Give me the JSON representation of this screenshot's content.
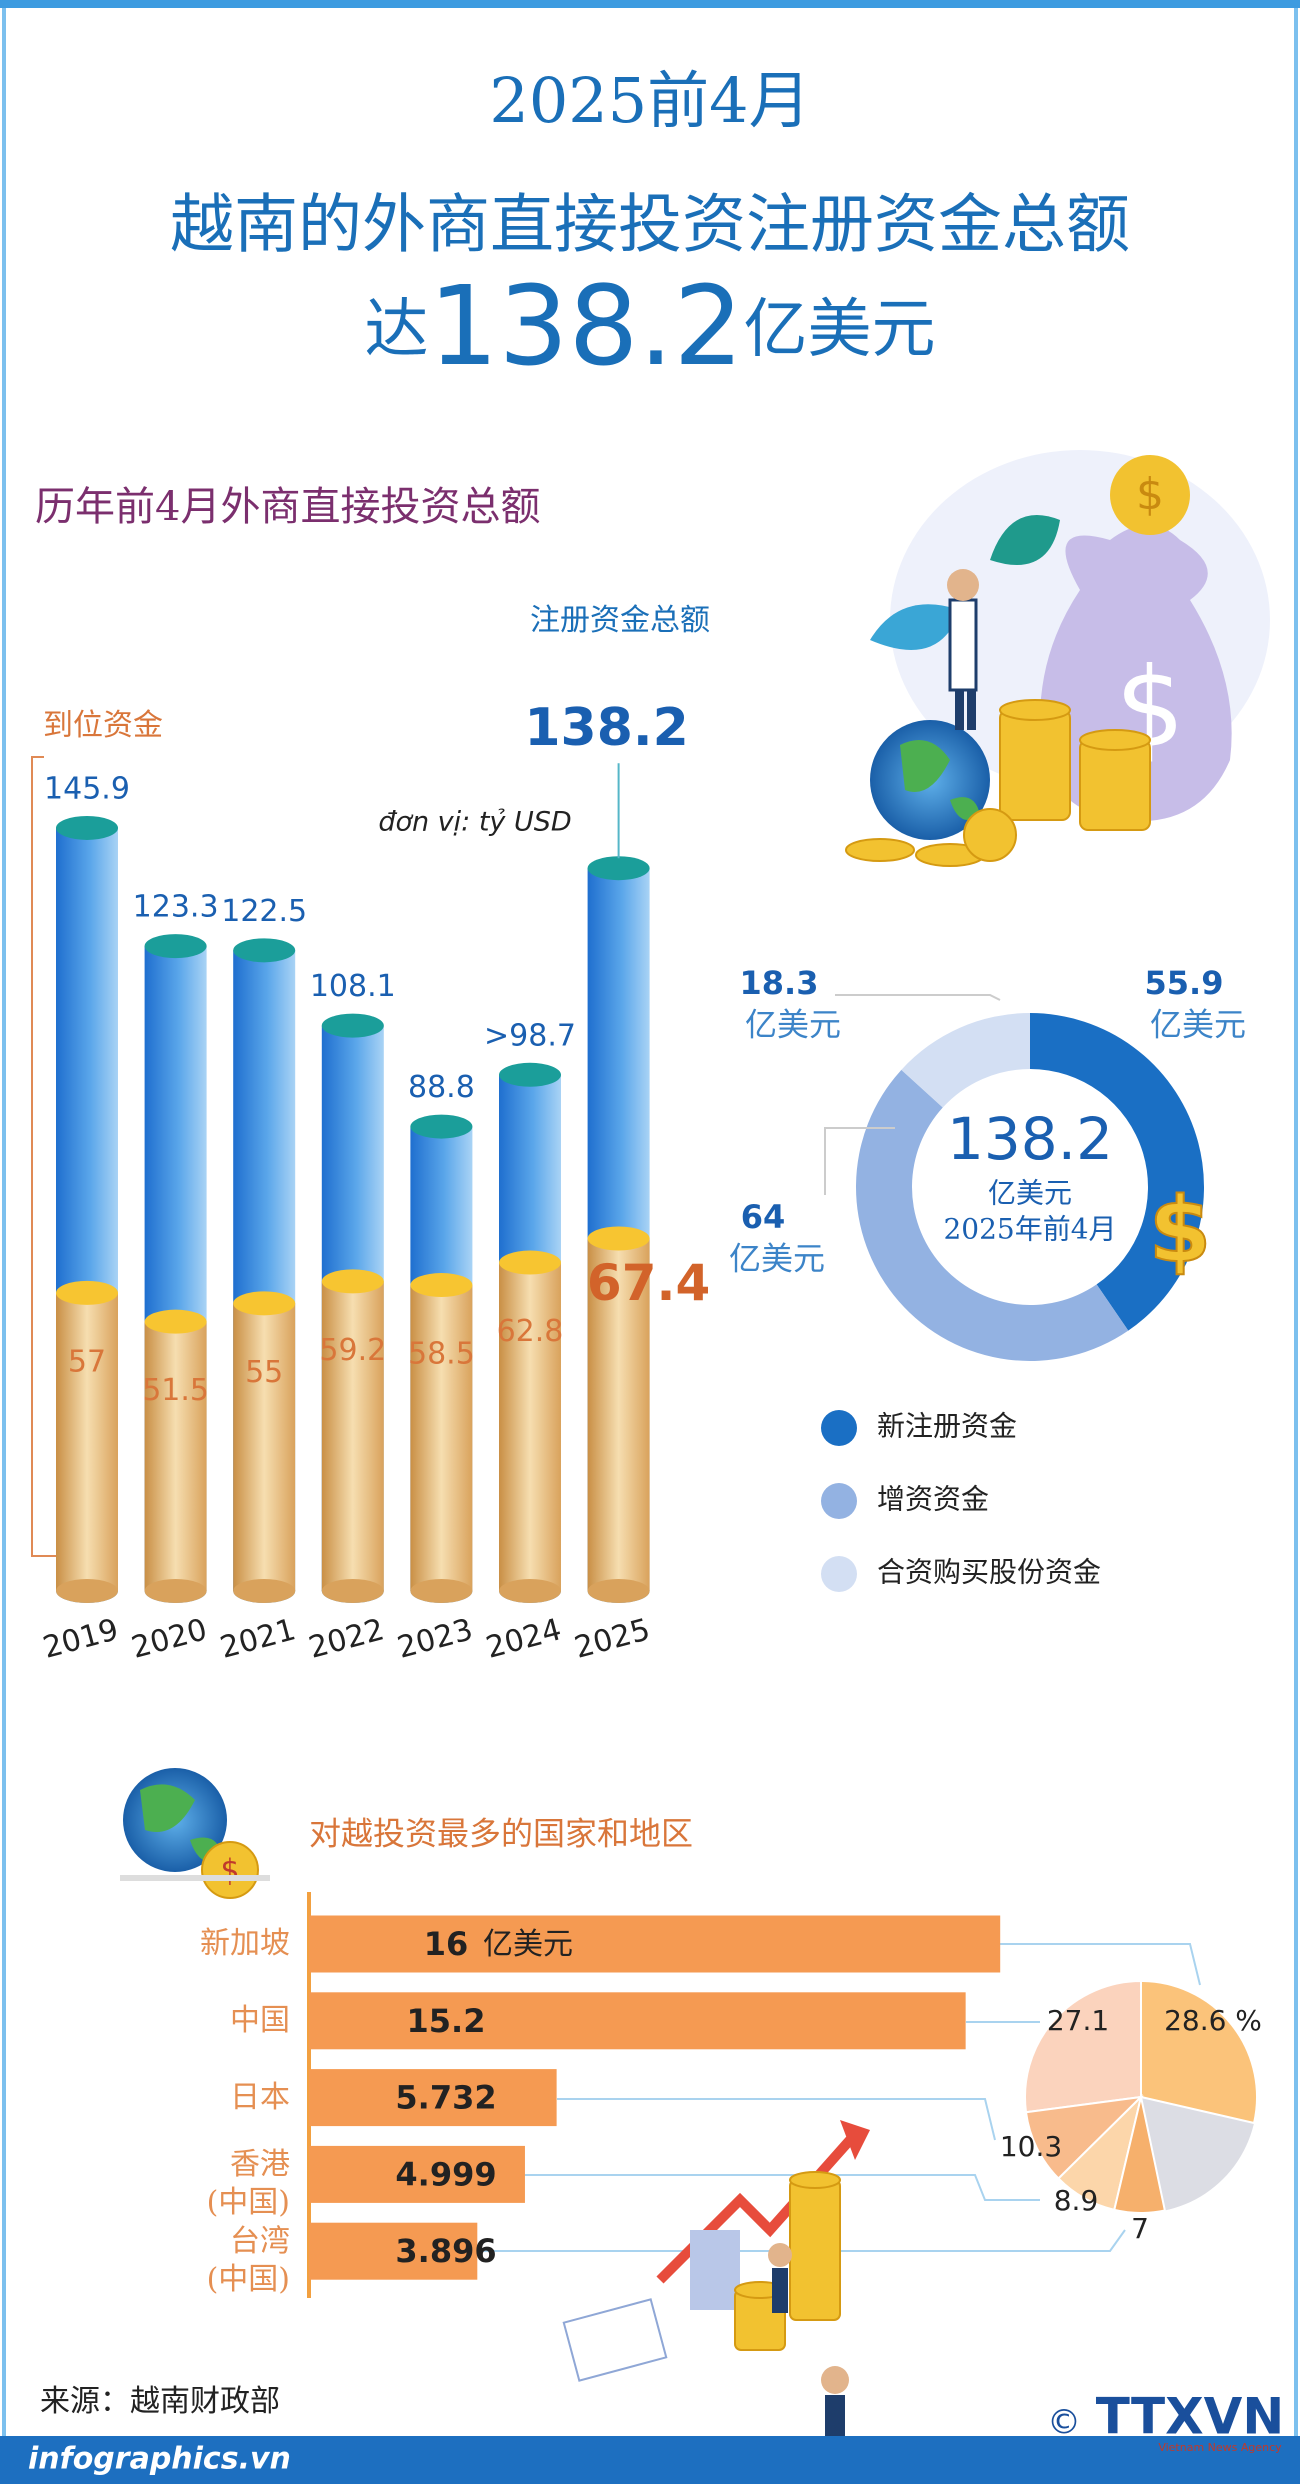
{
  "header": {
    "line1": "2025前4月",
    "line2": "越南的外商直接投资注册资金总额",
    "line3_prefix": "达",
    "line3_value": 138.2,
    "line3_unit": "亿美元"
  },
  "chart_data": [
    {
      "type": "cylinder_bar",
      "title": "历年前4月外商直接投资总额",
      "unit_note": "đơn vị: tỷ USD",
      "categories": [
        "2019",
        "2020",
        "2021",
        "2022",
        "2023",
        "2024",
        "2025"
      ],
      "series": [
        {
          "name": "注册资金总额",
          "color": "#2b7fd4",
          "values": [
            145.9,
            123.3,
            122.5,
            108.1,
            88.8,
            98.7,
            138.2
          ],
          "value_labels": [
            "145.9",
            "123.3",
            "122.5",
            "108.1",
            "88.8",
            ">98.7",
            "138.2"
          ]
        },
        {
          "name": "到位资金",
          "color": "#e6a552",
          "values": [
            57,
            51.5,
            55,
            59.2,
            58.5,
            62.8,
            67.4
          ]
        }
      ]
    },
    {
      "type": "donut",
      "total": 138.2,
      "unit": "亿美元",
      "period": "2025年前4月",
      "categories": [
        "新注册资金",
        "增资资金",
        "合资购买股份资金"
      ],
      "values": [
        55.9,
        64,
        18.3
      ],
      "colors": [
        "#1a6fc4",
        "#93b2e2",
        "#d3dff3"
      ]
    },
    {
      "type": "hbar",
      "title": "对越投资最多的国家和地区",
      "categories": [
        "新加坡",
        "中国",
        "日本",
        "香港\n(中国)",
        "台湾\n(中国)"
      ],
      "values": [
        16,
        15.2,
        5.732,
        4.999,
        3.896
      ],
      "unit": "亿美元",
      "color": "#f59a52"
    },
    {
      "type": "pie",
      "values": [
        28.6,
        27.1,
        10.3,
        8.9,
        7
      ],
      "value_labels": [
        "28.6 %",
        "27.1",
        "10.3",
        "8.9",
        "7"
      ],
      "colors": [
        "#fbc37a",
        "#fbd3bd",
        "#f8bb8c",
        "#fcd6aa",
        "#f6b06c"
      ]
    }
  ],
  "footer": {
    "source": "来源：越南财政部",
    "site": "infographics.vn",
    "copyright": "©",
    "logo": "TTXVN",
    "agency": "Vietnam News Agency"
  }
}
